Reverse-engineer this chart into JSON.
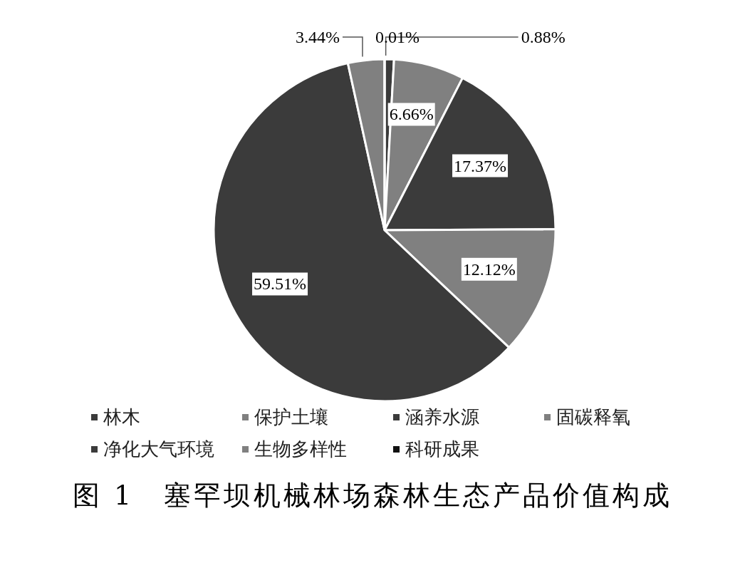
{
  "chart_data": {
    "type": "pie",
    "title": "图 1　塞罕坝机械林场森林生态产品价值构成",
    "categories": [
      "林木",
      "保护土壤",
      "涵养水源",
      "固碳释氧",
      "净化大气环境",
      "生物多样性",
      "科研成果"
    ],
    "values": [
      0.88,
      6.66,
      17.37,
      12.12,
      59.51,
      3.44,
      0.01
    ],
    "value_labels": [
      "0.88%",
      "6.66%",
      "17.37%",
      "12.12%",
      "59.51%",
      "3.44%",
      "0.01%"
    ],
    "colors": [
      "#3b3b3b",
      "#808080",
      "#3b3b3b",
      "#808080",
      "#3b3b3b",
      "#808080",
      "#111111"
    ],
    "legend": "bottom"
  }
}
